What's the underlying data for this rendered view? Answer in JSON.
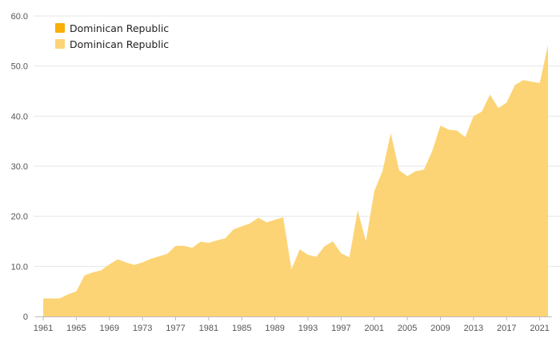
{
  "chart_data": {
    "type": "area",
    "title": "",
    "xlabel": "",
    "ylabel": "",
    "ylim": [
      0,
      60
    ],
    "y_ticks": [
      "0",
      "10.0",
      "20.0",
      "30.0",
      "40.0",
      "50.0",
      "60.0"
    ],
    "x_ticks": [
      "1961",
      "1965",
      "1969",
      "1973",
      "1977",
      "1981",
      "1985",
      "1989",
      "1993",
      "1997",
      "2001",
      "2005",
      "2009",
      "2013",
      "2017",
      "2021"
    ],
    "grid": "horizontal",
    "legend_position": "top-left",
    "legend": [
      {
        "label": "Dominican Republic",
        "color": "#f9ae08"
      },
      {
        "label": "Dominican Republic",
        "color": "#fcd475"
      }
    ],
    "colors": {
      "area": "#fcd475",
      "grid": "#e6e6e6",
      "axis": "#bbbbbb"
    },
    "x": [
      1961,
      1962,
      1963,
      1964,
      1965,
      1966,
      1967,
      1968,
      1969,
      1970,
      1971,
      1972,
      1973,
      1974,
      1975,
      1976,
      1977,
      1978,
      1979,
      1980,
      1981,
      1982,
      1983,
      1984,
      1985,
      1986,
      1987,
      1988,
      1989,
      1990,
      1991,
      1992,
      1993,
      1994,
      1995,
      1996,
      1997,
      1998,
      1999,
      2000,
      2001,
      2002,
      2003,
      2004,
      2005,
      2006,
      2007,
      2008,
      2009,
      2010,
      2011,
      2012,
      2013,
      2014,
      2015,
      2016,
      2017,
      2018,
      2019,
      2020,
      2021,
      2022
    ],
    "series": [
      {
        "name": "Dominican Republic",
        "values": [
          3.6,
          3.6,
          3.6,
          4.4,
          5.0,
          8.2,
          8.8,
          9.2,
          10.4,
          11.4,
          10.8,
          10.3,
          10.8,
          11.5,
          12.0,
          12.5,
          14.1,
          14.1,
          13.7,
          14.9,
          14.7,
          15.2,
          15.6,
          17.4,
          18.0,
          18.6,
          19.7,
          18.8,
          19.3,
          19.8,
          9.4,
          13.4,
          12.3,
          11.9,
          14.0,
          15.0,
          12.6,
          11.8,
          21.2,
          15.0,
          25.0,
          29.0,
          36.6,
          29.2,
          28.0,
          29.0,
          29.3,
          33.0,
          38.1,
          37.3,
          37.1,
          35.8,
          40.0,
          40.9,
          44.3,
          41.6,
          42.7,
          46.2,
          47.2,
          46.9,
          46.6,
          54.2
        ]
      }
    ]
  }
}
